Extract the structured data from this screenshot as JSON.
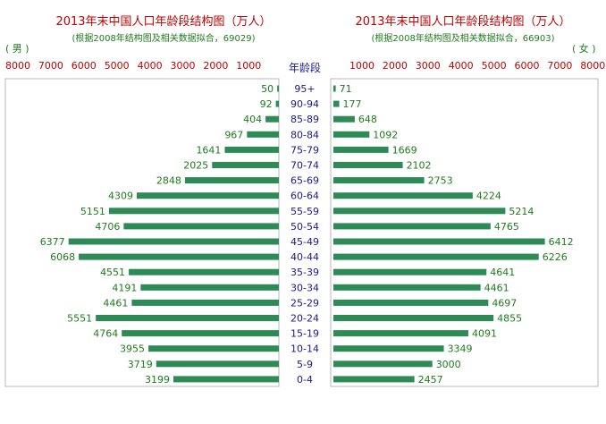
{
  "header": {
    "left_title": "2013年末中国人口年龄段结构图（万人）",
    "left_subtitle": "(根据2008年结构图及相关数据拟合，69029)",
    "right_title": "2013年末中国人口年龄段结构图（万人）",
    "right_subtitle": "(根据2008年结构图及相关数据拟合，66903)",
    "male_label": "( 男 )",
    "female_label": "( 女 )",
    "age_axis_title": "年龄段"
  },
  "colors": {
    "bar": "#2e8b57",
    "title": "#c00000",
    "subtitle": "#1f7a1f",
    "age_label": "#1a1a8c"
  },
  "chart_data": {
    "type": "bar",
    "orientation": "horizontal-pyramid",
    "categories": [
      "95+",
      "90-94",
      "85-89",
      "80-84",
      "75-79",
      "70-74",
      "65-69",
      "60-64",
      "55-59",
      "50-54",
      "45-49",
      "40-44",
      "35-39",
      "30-34",
      "25-29",
      "20-24",
      "15-19",
      "10-14",
      "5-9",
      "0-4"
    ],
    "series": [
      {
        "name": "男",
        "values": [
          50,
          92,
          404,
          967,
          1641,
          2025,
          2848,
          4309,
          5151,
          4706,
          6377,
          6068,
          4551,
          4191,
          4461,
          5551,
          4764,
          3955,
          3719,
          3199
        ]
      },
      {
        "name": "女",
        "values": [
          71,
          177,
          648,
          1092,
          1669,
          2102,
          2753,
          4224,
          5214,
          4765,
          6412,
          6226,
          4641,
          4461,
          4697,
          4855,
          4091,
          3349,
          3000,
          2457
        ]
      }
    ],
    "xlim": [
      0,
      8000
    ],
    "male_ticks": [
      "8000",
      "7000",
      "6000",
      "5000",
      "4000",
      "3000",
      "2000",
      "1000"
    ],
    "female_ticks": [
      "1000",
      "2000",
      "3000",
      "4000",
      "5000",
      "6000",
      "7000",
      "8000"
    ],
    "grid": false
  }
}
